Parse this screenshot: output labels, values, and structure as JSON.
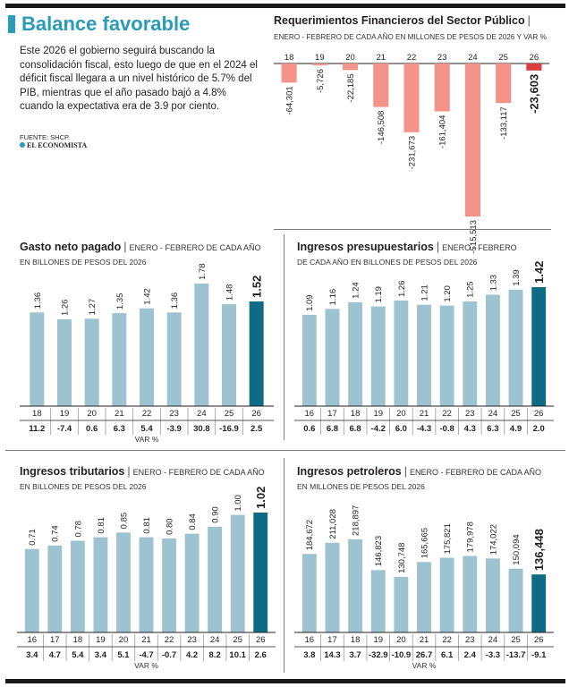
{
  "headline": "Balance favorable",
  "intro": "Este 2026  el gobierno seguirá buscando la consolidación fiscal, esto luego de que en el 2024 el déficit fiscal llegara a un nivel histórico de 5.7% del PIB, mientras que el año pasado bajó a 4.8% cuando la expectativa era de 3.9 por ciento.",
  "source": "FUENTE: SHCP.",
  "logo_text": "EL ECONOMISTA",
  "colors": {
    "accent": "#2a9bb8",
    "bar": "#9cc3cf",
    "highlight": "#0d6b84",
    "neg": "#f4938a",
    "neg_highlight": "#dc3e3e"
  },
  "chart_data": [
    {
      "id": "rfsp",
      "type": "bar",
      "title": "Requerimientos Financieros del Sector Público",
      "subtitle": "ENERO - FEBRERO DE CADA AÑO EN MILLONES DE PESOS DE 2026 Y VAR %",
      "categories": [
        "18",
        "19",
        "20",
        "21",
        "22",
        "23",
        "24",
        "25",
        "26"
      ],
      "values": [
        -64301,
        -5726,
        -22185,
        -146508,
        -231673,
        -161404,
        -515513,
        -133117,
        -23603
      ],
      "labels": [
        "-64,301",
        "-5,726",
        "-22,185",
        "-146,508",
        "-231,673",
        "-161,404",
        "-515,513",
        "-133,117",
        "-23,603"
      ],
      "ylim": [
        -515513,
        0
      ]
    },
    {
      "id": "gasto",
      "type": "bar",
      "title": "Gasto neto pagado",
      "subtitle_inline": "ENERO - FEBRERO DE CADA AÑO",
      "subtitle": "EN BILLONES DE PESOS DEL 2026",
      "categories": [
        "18",
        "19",
        "20",
        "21",
        "22",
        "23",
        "24",
        "25",
        "26"
      ],
      "values": [
        1.36,
        1.26,
        1.27,
        1.35,
        1.42,
        1.36,
        1.78,
        1.48,
        1.52
      ],
      "labels": [
        "1.36",
        "1.26",
        "1.27",
        "1.35",
        "1.42",
        "1.36",
        "1.78",
        "1.48",
        "1.52"
      ],
      "var_label": "VAR %",
      "var": [
        "11.2",
        "-7.4",
        "0.6",
        "6.3",
        "5.4",
        "-3.9",
        "30.8",
        "-16.9",
        "2.5"
      ],
      "ylim": [
        0,
        1.78
      ]
    },
    {
      "id": "presup",
      "type": "bar",
      "title": "Ingresos presupuestarios",
      "subtitle_inline": "ENERO - FEBRERO",
      "subtitle": "DE CADA AÑO EN BILLONES DE PESOS DEL 2026",
      "categories": [
        "16",
        "17",
        "18",
        "19",
        "20",
        "21",
        "22",
        "23",
        "24",
        "25",
        "26"
      ],
      "values": [
        1.09,
        1.16,
        1.24,
        1.19,
        1.26,
        1.21,
        1.2,
        1.25,
        1.33,
        1.39,
        1.42
      ],
      "labels": [
        "1.09",
        "1.16",
        "1.24",
        "1.19",
        "1.26",
        "1.21",
        "1.20",
        "1.25",
        "1.33",
        "1.39",
        "1.42"
      ],
      "var": [
        "0.6",
        "6.8",
        "6.8",
        "-4.2",
        "6.0",
        "-4.3",
        "-0.8",
        "4.3",
        "6.3",
        "4.9",
        "2.0"
      ],
      "ylim": [
        0,
        1.42
      ]
    },
    {
      "id": "tribut",
      "type": "bar",
      "title": "Ingresos tributarios",
      "subtitle_inline": "ENERO - FEBRERO DE CADA AÑO",
      "subtitle": "EN BILLONES DE PESOS DEL 2026",
      "categories": [
        "16",
        "17",
        "18",
        "19",
        "20",
        "21",
        "22",
        "23",
        "24",
        "25",
        "26"
      ],
      "values": [
        0.71,
        0.74,
        0.78,
        0.81,
        0.85,
        0.81,
        0.8,
        0.84,
        0.9,
        1.0,
        1.02
      ],
      "labels": [
        "0.71",
        "0.74",
        "0.78",
        "0.81",
        "0.85",
        "0.81",
        "0.80",
        "0.84",
        "0.90",
        "1.00",
        "1.02"
      ],
      "var_label": "VAR %",
      "var": [
        "3.4",
        "4.7",
        "5.4",
        "3.4",
        "5.1",
        "-4.7",
        "-0.7",
        "4.2",
        "8.2",
        "10.1",
        "2.6"
      ],
      "ylim": [
        0,
        1.02
      ]
    },
    {
      "id": "petrol",
      "type": "bar",
      "title": "Ingresos petroleros",
      "subtitle_inline": "ENERO - FEBRERO DE CADA AÑO",
      "subtitle": "EN MILLONES DE PESOS DEL 2026",
      "categories": [
        "16",
        "17",
        "18",
        "19",
        "20",
        "21",
        "22",
        "23",
        "24",
        "25",
        "26"
      ],
      "values": [
        184672,
        211028,
        218897,
        146823,
        130748,
        165665,
        175821,
        179978,
        174022,
        150094,
        136448
      ],
      "labels": [
        "184,672",
        "211,028",
        "218,897",
        "146,823",
        "130,748",
        "165,665",
        "175,821",
        "179,978",
        "174,022",
        "150,094",
        "136,448"
      ],
      "var_label": "VAR %",
      "var": [
        "3.8",
        "14.3",
        "3.7",
        "-32.9",
        "-10.9",
        "26.7",
        "6.1",
        "2.4",
        "-3.3",
        "-13.7",
        "-9.1"
      ],
      "ylim": [
        0,
        218897
      ]
    }
  ]
}
